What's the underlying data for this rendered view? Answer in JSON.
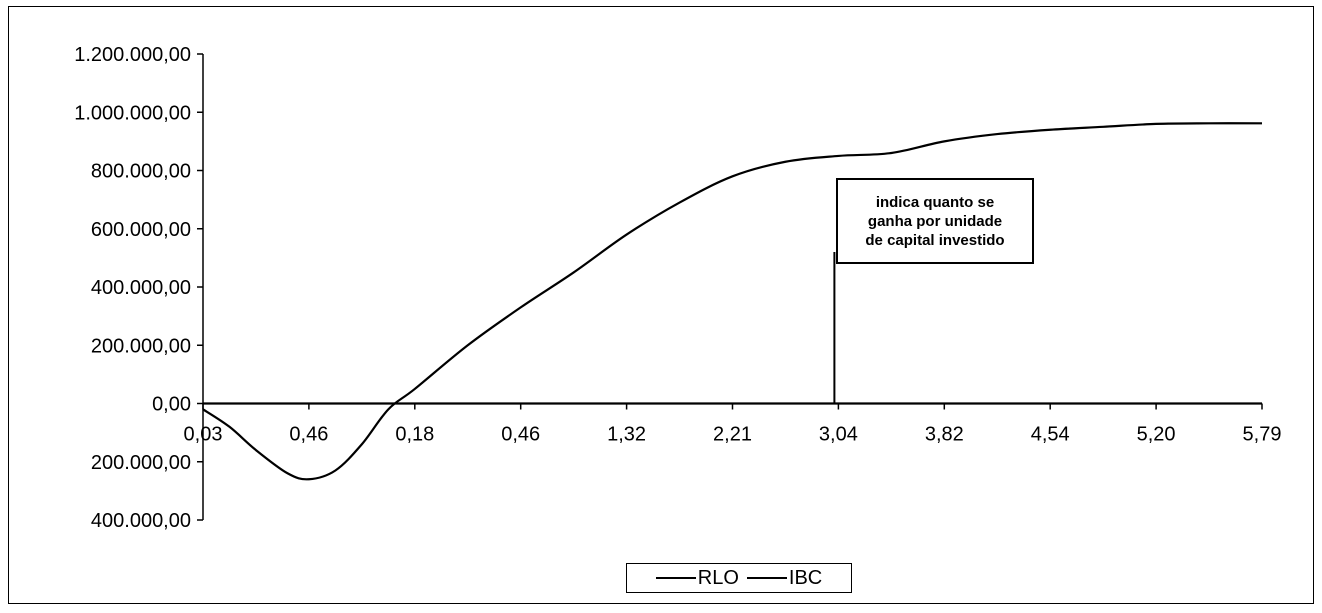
{
  "chart_data": {
    "type": "line",
    "x_tick_labels": [
      "0,03",
      "0,46",
      "0,18",
      "0,46",
      "1,32",
      "2,21",
      "3,04",
      "3,82",
      "4,54",
      "5,20",
      "5,79"
    ],
    "y_tick_labels": [
      "1.200.000,00",
      "1.000.000,00",
      "800.000,00",
      "600.000,00",
      "400.000,00",
      "200.000,00",
      "0,00",
      "200.000,00",
      "400.000,00"
    ],
    "y_tick_values": [
      1200000,
      1000000,
      800000,
      600000,
      400000,
      200000,
      0,
      -200000,
      -400000
    ],
    "ylim": [
      -400000,
      1200000
    ],
    "grid": false,
    "legend_position": "bottom",
    "series": [
      {
        "name": "RLO",
        "color": "#000000",
        "x_index": [
          0,
          0.25,
          0.5,
          0.8,
          1,
          1.25,
          1.5,
          1.75,
          2,
          2.5,
          3,
          3.5,
          4,
          4.5,
          5,
          5.5,
          6,
          6.5,
          7,
          7.5,
          8,
          8.5,
          9,
          9.5,
          10
        ],
        "values": [
          -20000,
          -80000,
          -160000,
          -240000,
          -260000,
          -230000,
          -140000,
          -20000,
          50000,
          200000,
          330000,
          450000,
          580000,
          690000,
          780000,
          830000,
          850000,
          860000,
          900000,
          925000,
          940000,
          950000,
          960000,
          962000,
          962000
        ]
      },
      {
        "name": "IBC",
        "color": "#000000",
        "x_index": [
          0,
          10
        ],
        "values": [
          0,
          0
        ]
      }
    ],
    "annotation": {
      "lines": [
        "indica quanto se",
        "ganha por unidade",
        "de capital investido"
      ],
      "pointer_x_index": 6
    }
  }
}
